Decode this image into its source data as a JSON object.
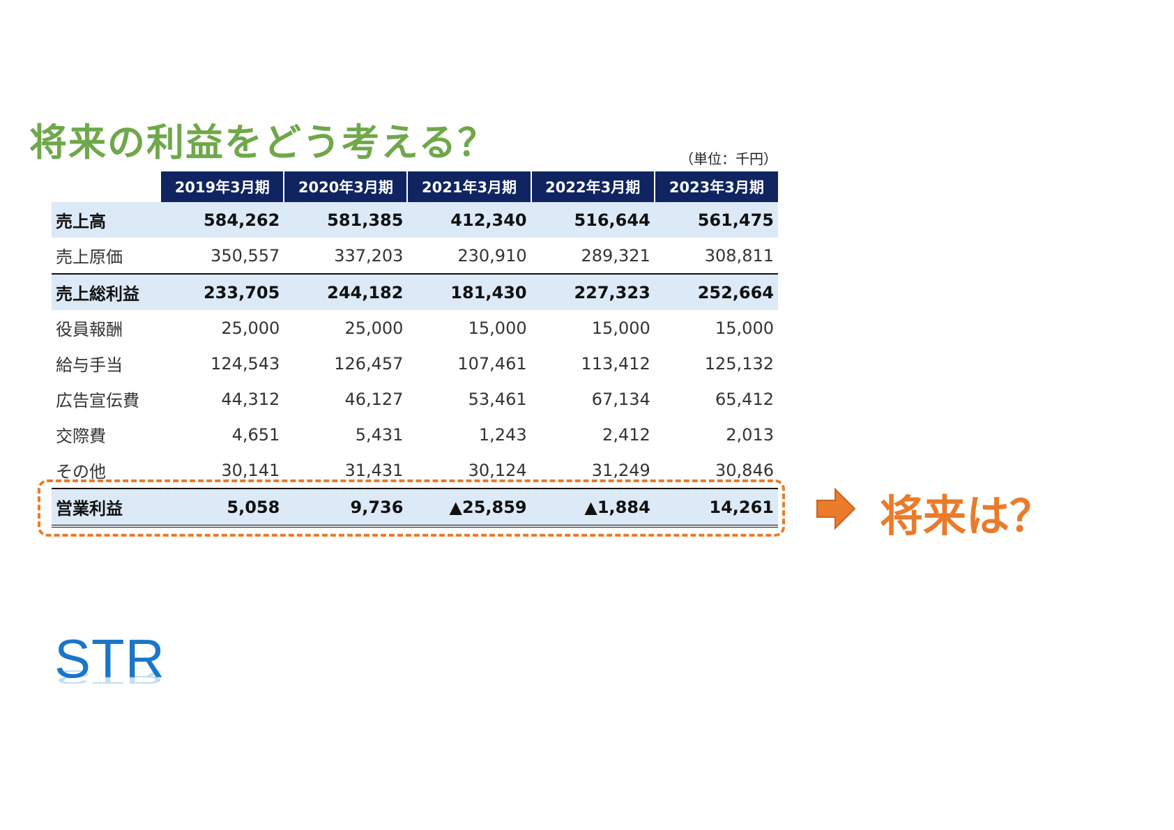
{
  "title": "将来の利益をどう考える？",
  "unit_note": "（単位：千円）",
  "table": {
    "headers": [
      "2019年3月期",
      "2020年3月期",
      "2021年3月期",
      "2022年3月期",
      "2023年3月期"
    ],
    "rows": [
      {
        "label": "売上高",
        "values": [
          "584,262",
          "581,385",
          "412,340",
          "516,644",
          "561,475"
        ]
      },
      {
        "label": "売上原価",
        "values": [
          "350,557",
          "337,203",
          "230,910",
          "289,321",
          "308,811"
        ]
      },
      {
        "label": "売上総利益",
        "values": [
          "233,705",
          "244,182",
          "181,430",
          "227,323",
          "252,664"
        ]
      },
      {
        "label": "役員報酬",
        "values": [
          "25,000",
          "25,000",
          "15,000",
          "15,000",
          "15,000"
        ]
      },
      {
        "label": "給与手当",
        "values": [
          "124,543",
          "126,457",
          "107,461",
          "113,412",
          "125,132"
        ]
      },
      {
        "label": "広告宣伝費",
        "values": [
          "44,312",
          "46,127",
          "53,461",
          "67,134",
          "65,412"
        ]
      },
      {
        "label": "交際費",
        "values": [
          "4,651",
          "5,431",
          "1,243",
          "2,412",
          "2,013"
        ]
      },
      {
        "label": "その他",
        "values": [
          "30,141",
          "31,431",
          "30,124",
          "31,249",
          "30,846"
        ]
      },
      {
        "label": "営業利益",
        "values": [
          "5,058",
          "9,736",
          "▲25,859",
          "▲1,884",
          "14,261"
        ]
      }
    ]
  },
  "callout": {
    "text": "将来は？",
    "arrow_icon": "right-arrow-icon"
  },
  "logo": {
    "text": "STR"
  },
  "colors": {
    "title": "#6ea84a",
    "header_bg": "#0f2460",
    "highlight_bg": "#dce9f6",
    "accent": "#ea7b2b",
    "logo": "#1a76c8"
  }
}
